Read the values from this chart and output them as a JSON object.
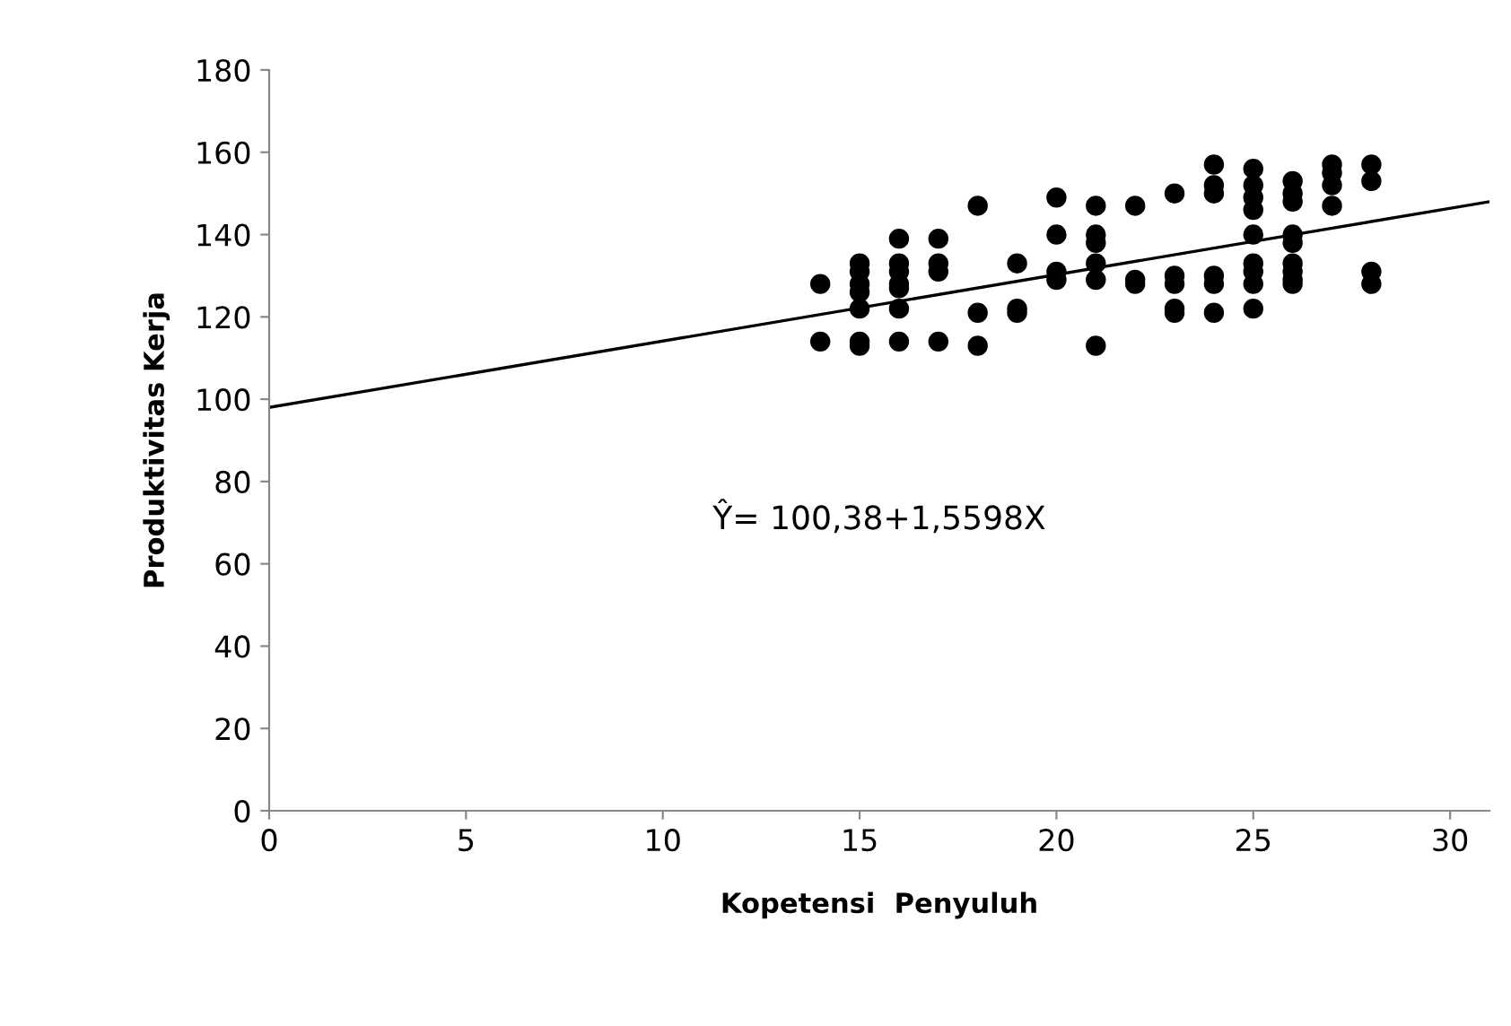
{
  "chart_data": {
    "type": "scatter",
    "xlabel": "Kopetensi  Penyuluh",
    "ylabel": "Produktivitas Kerja",
    "annotations": [
      "Ŷ= 100,38+1,5598X"
    ],
    "xlim": [
      0,
      31
    ],
    "xticks": [
      0,
      5,
      10,
      15,
      20,
      25,
      30
    ],
    "ylim": [
      0,
      180
    ],
    "yticks": [
      0,
      20,
      40,
      60,
      80,
      100,
      120,
      140,
      160,
      180
    ],
    "grid": false,
    "legend": false,
    "series": [
      {
        "marker": "circle",
        "color": "#000000",
        "x": [
          14,
          14,
          15,
          15,
          15,
          15,
          15,
          15,
          15,
          16,
          16,
          16,
          16,
          16,
          16,
          16,
          17,
          17,
          17,
          17,
          18,
          18,
          18,
          19,
          19,
          19,
          20,
          20,
          20,
          20,
          21,
          21,
          21,
          21,
          21,
          21,
          22,
          22,
          22,
          23,
          23,
          23,
          23,
          23,
          24,
          24,
          24,
          24,
          24,
          24,
          25,
          25,
          25,
          25,
          25,
          25,
          25,
          25,
          25,
          26,
          26,
          26,
          26,
          26,
          26,
          26,
          26,
          26,
          27,
          27,
          27,
          27,
          28,
          28,
          28,
          28
        ],
        "values": [
          128,
          114,
          133,
          131,
          128,
          126,
          122,
          114,
          113,
          139,
          133,
          131,
          128,
          127,
          122,
          114,
          139,
          133,
          131,
          114,
          147,
          121,
          113,
          133,
          122,
          121,
          149,
          140,
          131,
          129,
          147,
          140,
          138,
          133,
          129,
          113,
          147,
          129,
          128,
          150,
          130,
          128,
          122,
          121,
          157,
          152,
          150,
          130,
          128,
          121,
          156,
          152,
          149,
          146,
          140,
          133,
          131,
          128,
          122,
          153,
          150,
          148,
          140,
          138,
          133,
          131,
          129,
          128,
          157,
          155,
          152,
          147,
          157,
          153,
          131,
          128
        ]
      },
      {
        "type": "line",
        "marker": "none",
        "color": "#000000",
        "x": [
          0,
          31
        ],
        "values": [
          98,
          148
        ]
      }
    ]
  }
}
